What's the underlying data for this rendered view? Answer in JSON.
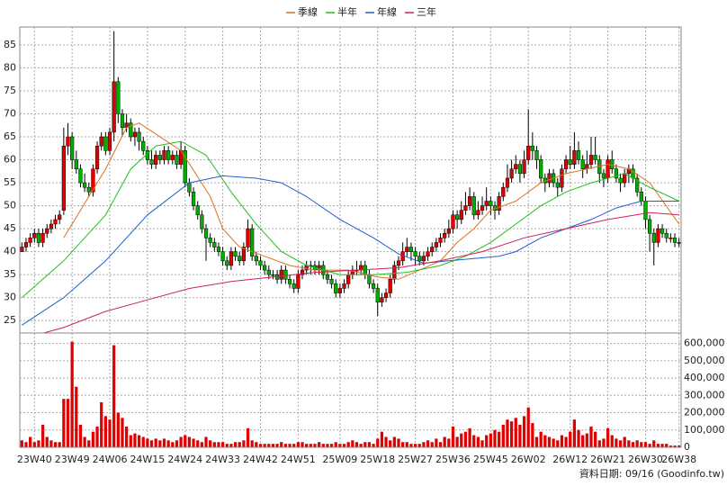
{
  "chart_data": {
    "type": "candlestick",
    "legend_position": "top",
    "grid": true,
    "up_color": "#e00000",
    "down_color": "#00b000",
    "volume_color": "#e00000",
    "categories": [
      null,
      null,
      null,
      "23W40",
      null,
      null,
      null,
      null,
      null,
      null,
      null,
      null,
      "23W49",
      null,
      null,
      null,
      null,
      null,
      null,
      null,
      null,
      "24W06",
      null,
      null,
      null,
      null,
      null,
      null,
      null,
      null,
      "24W15",
      null,
      null,
      null,
      null,
      null,
      null,
      null,
      null,
      "24W24",
      null,
      null,
      null,
      null,
      null,
      null,
      null,
      null,
      "24W33",
      null,
      null,
      null,
      null,
      null,
      null,
      null,
      null,
      "24W42",
      null,
      null,
      null,
      null,
      null,
      null,
      null,
      null,
      "24W51",
      null,
      null,
      null,
      null,
      null,
      null,
      null,
      null,
      null,
      "25W09",
      null,
      null,
      null,
      null,
      null,
      null,
      null,
      null,
      "25W18",
      null,
      null,
      null,
      null,
      null,
      null,
      null,
      null,
      "25W27",
      null,
      null,
      null,
      null,
      null,
      null,
      null,
      null,
      "25W36",
      null,
      null,
      null,
      null,
      null,
      null,
      null,
      null,
      "25W45",
      null,
      null,
      null,
      null,
      null,
      null,
      null,
      null,
      "26W02",
      null,
      null,
      null,
      null,
      null,
      null,
      null,
      null,
      null,
      "26W12",
      null,
      null,
      null,
      null,
      null,
      null,
      null,
      null,
      "26W21",
      null,
      null,
      null,
      null,
      null,
      null,
      null,
      null,
      "26W30",
      null,
      null,
      null,
      null,
      null,
      null,
      null,
      "26W38"
    ],
    "candles": [
      [
        40,
        42,
        40,
        41
      ],
      [
        41,
        43,
        40,
        42
      ],
      [
        42,
        44,
        41,
        43
      ],
      [
        43,
        45,
        42,
        44
      ],
      [
        44,
        45,
        41,
        42
      ],
      [
        42,
        45,
        41,
        44
      ],
      [
        44,
        46,
        43,
        45
      ],
      [
        45,
        47,
        44,
        46
      ],
      [
        46,
        48,
        45,
        47
      ],
      [
        47,
        49,
        46,
        48
      ],
      [
        49,
        67,
        48,
        63
      ],
      [
        63,
        68,
        61,
        65
      ],
      [
        65,
        66,
        58,
        60
      ],
      [
        60,
        62,
        57,
        58
      ],
      [
        58,
        59,
        54,
        55
      ],
      [
        55,
        57,
        53,
        54
      ],
      [
        54,
        55,
        52,
        53
      ],
      [
        53,
        59,
        52,
        58
      ],
      [
        58,
        64,
        57,
        63
      ],
      [
        63,
        66,
        62,
        65
      ],
      [
        65,
        66,
        61,
        62
      ],
      [
        62,
        67,
        61,
        66
      ],
      [
        66,
        88,
        64,
        77
      ],
      [
        77,
        78,
        68,
        70
      ],
      [
        70,
        71,
        65,
        67
      ],
      [
        67,
        70,
        66,
        68
      ],
      [
        68,
        69,
        64,
        65
      ],
      [
        65,
        67,
        63,
        66
      ],
      [
        66,
        67,
        62,
        64
      ],
      [
        64,
        65,
        61,
        62
      ],
      [
        62,
        63,
        59,
        60
      ],
      [
        60,
        62,
        58,
        59
      ],
      [
        59,
        62,
        58,
        61
      ],
      [
        61,
        62,
        59,
        60
      ],
      [
        60,
        63,
        59,
        62
      ],
      [
        62,
        63,
        59,
        60
      ],
      [
        60,
        62,
        59,
        61
      ],
      [
        61,
        62,
        58,
        59
      ],
      [
        59,
        64,
        58,
        62
      ],
      [
        62,
        63,
        54,
        55
      ],
      [
        55,
        56,
        52,
        53
      ],
      [
        53,
        54,
        49,
        50
      ],
      [
        50,
        51,
        47,
        48
      ],
      [
        48,
        49,
        44,
        45
      ],
      [
        45,
        46,
        38,
        43
      ],
      [
        43,
        44,
        41,
        42
      ],
      [
        42,
        43,
        40,
        41
      ],
      [
        41,
        42,
        39,
        40
      ],
      [
        40,
        41,
        37,
        38
      ],
      [
        38,
        39,
        36,
        37
      ],
      [
        37,
        41,
        36,
        40
      ],
      [
        40,
        41,
        38,
        39
      ],
      [
        39,
        40,
        37,
        38
      ],
      [
        38,
        42,
        37,
        41
      ],
      [
        41,
        47,
        40,
        45
      ],
      [
        45,
        46,
        38,
        39
      ],
      [
        39,
        40,
        37,
        38
      ],
      [
        38,
        39,
        36,
        37
      ],
      [
        37,
        38,
        35,
        36
      ],
      [
        36,
        37,
        34,
        35
      ],
      [
        35,
        36,
        34,
        35
      ],
      [
        35,
        36,
        33,
        34
      ],
      [
        34,
        37,
        33,
        36
      ],
      [
        36,
        37,
        33,
        34
      ],
      [
        34,
        35,
        32,
        33
      ],
      [
        33,
        34,
        31,
        32
      ],
      [
        32,
        36,
        31,
        35
      ],
      [
        35,
        37,
        34,
        36
      ],
      [
        36,
        38,
        35,
        37
      ],
      [
        37,
        38,
        35,
        37
      ],
      [
        37,
        38,
        35,
        36
      ],
      [
        36,
        38,
        35,
        37
      ],
      [
        37,
        38,
        34,
        35
      ],
      [
        35,
        36,
        33,
        34
      ],
      [
        34,
        35,
        32,
        33
      ],
      [
        33,
        34,
        30,
        31
      ],
      [
        31,
        33,
        30,
        32
      ],
      [
        32,
        34,
        31,
        33
      ],
      [
        33,
        36,
        32,
        35
      ],
      [
        35,
        37,
        34,
        36
      ],
      [
        36,
        38,
        35,
        36
      ],
      [
        36,
        38,
        35,
        37
      ],
      [
        37,
        38,
        34,
        35
      ],
      [
        35,
        36,
        32,
        33
      ],
      [
        33,
        34,
        31,
        32
      ],
      [
        32,
        33,
        26,
        29
      ],
      [
        29,
        31,
        28,
        30
      ],
      [
        30,
        32,
        29,
        31
      ],
      [
        31,
        35,
        30,
        34
      ],
      [
        34,
        38,
        33,
        37
      ],
      [
        37,
        39,
        36,
        38
      ],
      [
        38,
        42,
        37,
        40
      ],
      [
        40,
        43,
        39,
        41
      ],
      [
        41,
        42,
        38,
        40
      ],
      [
        40,
        41,
        37,
        39
      ],
      [
        39,
        40,
        37,
        38
      ],
      [
        38,
        40,
        37,
        39
      ],
      [
        39,
        41,
        38,
        40
      ],
      [
        40,
        42,
        39,
        41
      ],
      [
        41,
        43,
        40,
        42
      ],
      [
        42,
        44,
        41,
        43
      ],
      [
        43,
        45,
        42,
        44
      ],
      [
        44,
        47,
        43,
        45
      ],
      [
        45,
        49,
        44,
        48
      ],
      [
        48,
        49,
        45,
        47
      ],
      [
        47,
        51,
        46,
        49
      ],
      [
        49,
        53,
        48,
        50
      ],
      [
        50,
        54,
        49,
        52
      ],
      [
        52,
        53,
        47,
        48
      ],
      [
        48,
        51,
        47,
        49
      ],
      [
        49,
        52,
        48,
        50
      ],
      [
        50,
        54,
        49,
        51
      ],
      [
        51,
        52,
        48,
        50
      ],
      [
        50,
        51,
        47,
        49
      ],
      [
        49,
        53,
        48,
        52
      ],
      [
        52,
        55,
        51,
        54
      ],
      [
        54,
        59,
        53,
        56
      ],
      [
        56,
        60,
        55,
        58
      ],
      [
        58,
        61,
        57,
        59
      ],
      [
        59,
        60,
        55,
        57
      ],
      [
        57,
        62,
        56,
        60
      ],
      [
        60,
        71,
        59,
        63
      ],
      [
        63,
        66,
        60,
        62
      ],
      [
        62,
        63,
        58,
        60
      ],
      [
        60,
        61,
        55,
        56
      ],
      [
        56,
        57,
        53,
        55
      ],
      [
        55,
        58,
        54,
        57
      ],
      [
        57,
        58,
        54,
        55
      ],
      [
        55,
        56,
        52,
        54
      ],
      [
        54,
        59,
        53,
        58
      ],
      [
        58,
        61,
        57,
        60
      ],
      [
        60,
        63,
        58,
        59
      ],
      [
        59,
        66,
        58,
        62
      ],
      [
        62,
        64,
        59,
        60
      ],
      [
        60,
        61,
        56,
        58
      ],
      [
        58,
        62,
        57,
        59
      ],
      [
        59,
        65,
        58,
        61
      ],
      [
        61,
        65,
        59,
        60
      ],
      [
        60,
        61,
        55,
        57
      ],
      [
        57,
        58,
        54,
        56
      ],
      [
        56,
        61,
        55,
        60
      ],
      [
        60,
        62,
        57,
        58
      ],
      [
        58,
        59,
        55,
        56
      ],
      [
        56,
        57,
        53,
        55
      ],
      [
        55,
        58,
        54,
        57
      ],
      [
        57,
        59,
        55,
        58
      ],
      [
        58,
        59,
        55,
        56
      ],
      [
        56,
        57,
        52,
        53
      ],
      [
        53,
        54,
        50,
        51
      ],
      [
        51,
        52,
        45,
        47
      ],
      [
        47,
        48,
        40,
        44
      ],
      [
        44,
        45,
        37,
        42
      ],
      [
        42,
        46,
        41,
        45
      ],
      [
        45,
        46,
        43,
        44
      ],
      [
        44,
        45,
        42,
        43
      ],
      [
        43,
        44,
        42,
        43
      ],
      [
        43,
        44,
        41,
        42
      ],
      [
        42,
        43,
        41,
        42
      ]
    ],
    "volume": [
      40000,
      30000,
      60000,
      30000,
      40000,
      130000,
      60000,
      40000,
      30000,
      30000,
      280000,
      280000,
      610000,
      350000,
      130000,
      60000,
      40000,
      90000,
      120000,
      260000,
      180000,
      160000,
      590000,
      200000,
      170000,
      120000,
      70000,
      80000,
      70000,
      60000,
      50000,
      40000,
      50000,
      40000,
      50000,
      40000,
      30000,
      40000,
      60000,
      70000,
      60000,
      50000,
      40000,
      30000,
      60000,
      40000,
      30000,
      30000,
      30000,
      20000,
      20000,
      30000,
      30000,
      40000,
      110000,
      40000,
      30000,
      20000,
      20000,
      20000,
      20000,
      20000,
      30000,
      20000,
      20000,
      20000,
      30000,
      30000,
      20000,
      20000,
      20000,
      30000,
      20000,
      20000,
      20000,
      30000,
      20000,
      20000,
      30000,
      40000,
      30000,
      20000,
      30000,
      30000,
      20000,
      50000,
      90000,
      60000,
      40000,
      60000,
      50000,
      30000,
      30000,
      20000,
      20000,
      20000,
      30000,
      40000,
      30000,
      50000,
      30000,
      60000,
      50000,
      120000,
      60000,
      80000,
      90000,
      110000,
      70000,
      60000,
      40000,
      70000,
      80000,
      100000,
      90000,
      130000,
      160000,
      150000,
      170000,
      130000,
      180000,
      230000,
      140000,
      60000,
      90000,
      70000,
      60000,
      50000,
      40000,
      70000,
      60000,
      90000,
      160000,
      100000,
      70000,
      80000,
      120000,
      90000,
      40000,
      50000,
      110000,
      70000,
      50000,
      40000,
      60000,
      40000,
      30000,
      40000,
      30000,
      30000,
      20000,
      40000,
      20000,
      20000,
      20000,
      10000,
      10000,
      10000
    ],
    "series": [
      {
        "name": "季線",
        "color": "#e07020",
        "x": [
          10,
          20,
          25,
          28,
          38,
          45,
          48,
          52,
          58,
          64,
          70,
          78,
          85,
          90,
          95,
          100,
          104,
          108,
          112,
          118,
          124,
          130,
          135,
          140,
          145,
          150,
          157
        ],
        "values": [
          43,
          58,
          67,
          68,
          62,
          52,
          45,
          41,
          39,
          37,
          36,
          36,
          34.5,
          34,
          36,
          38,
          42,
          45,
          49,
          51,
          55,
          57,
          58,
          59,
          58,
          55,
          46
        ]
      },
      {
        "name": "半年",
        "color": "#20c020",
        "x": [
          0,
          10,
          20,
          26,
          32,
          38,
          44,
          50,
          56,
          62,
          68,
          76,
          84,
          92,
          100,
          106,
          112,
          118,
          124,
          130,
          136,
          144,
          150,
          157
        ],
        "values": [
          30,
          38,
          48,
          58,
          63,
          64,
          61,
          53,
          46,
          40,
          37,
          35,
          35,
          35.5,
          37,
          39,
          42,
          46,
          50,
          53,
          55,
          57,
          54,
          51
        ]
      },
      {
        "name": "年線",
        "color": "#2060d0",
        "x": [
          0,
          10,
          20,
          30,
          40,
          48,
          56,
          62,
          68,
          76,
          84,
          90,
          96,
          102,
          108,
          114,
          118,
          124,
          130,
          136,
          142,
          148,
          157
        ],
        "values": [
          24,
          30,
          38,
          48,
          55,
          56.5,
          56,
          55,
          52,
          47,
          43,
          39.5,
          37.5,
          38,
          38.5,
          39,
          40,
          43,
          45,
          47,
          49.5,
          51,
          51
        ]
      },
      {
        "name": "三年",
        "color": "#d02060",
        "x": [
          0,
          10,
          20,
          30,
          40,
          50,
          60,
          70,
          80,
          90,
          100,
          110,
          120,
          130,
          140,
          150,
          157
        ],
        "values": [
          21,
          23.5,
          27,
          29.5,
          32,
          33.5,
          34.5,
          35.5,
          36,
          36.5,
          38,
          40,
          43,
          45,
          47,
          48.5,
          48
        ]
      }
    ],
    "ylim": [
      22.3,
      88.9
    ],
    "yticks": [
      25,
      30,
      35,
      40,
      45,
      50,
      55,
      60,
      65,
      70,
      75,
      80,
      85
    ],
    "y2lim": [
      0,
      650000
    ],
    "y2ticks": [
      {
        "value": 0,
        "label": "0"
      },
      {
        "value": 100000,
        "label": "100,000"
      },
      {
        "value": 200000,
        "label": "200,000"
      },
      {
        "value": 300000,
        "label": "300,000"
      },
      {
        "value": 400000,
        "label": "400,000"
      },
      {
        "value": 500000,
        "label": "500,000"
      },
      {
        "value": 600000,
        "label": "600,000"
      }
    ],
    "footnote": "資料日期: 09/16 (Goodinfo.tw)"
  }
}
